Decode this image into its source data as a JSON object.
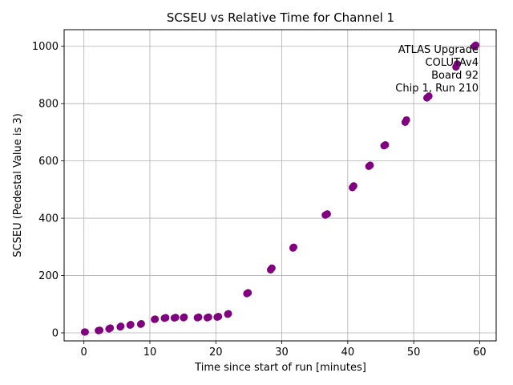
{
  "chart_data": {
    "type": "scatter",
    "title": "SCSEU vs Relative Time for Channel 1",
    "xlabel": "Time since start of run [minutes]",
    "ylabel": "SCSEU (Pedestal Value is 3)",
    "xlim": [
      -3,
      62.5
    ],
    "ylim": [
      -28,
      1058
    ],
    "xticks": [
      0,
      10,
      20,
      30,
      40,
      50,
      60
    ],
    "yticks": [
      0,
      200,
      400,
      600,
      800,
      1000
    ],
    "xtick_labels": [
      "0",
      "10",
      "20",
      "30",
      "40",
      "50",
      "60"
    ],
    "ytick_labels": [
      "0",
      "200",
      "400",
      "600",
      "800",
      "1000"
    ],
    "grid": true,
    "marker_color": "#800080",
    "annotation": [
      "ATLAS Upgrade",
      "COLUTAv4",
      "Board 92",
      "Chip 1, Run 210"
    ],
    "annotation_position": "top-right",
    "series": [
      {
        "name": "Channel 1",
        "x": [
          0.1,
          0.2,
          2.2,
          2.4,
          3.8,
          4.0,
          5.5,
          5.6,
          7.0,
          7.1,
          8.6,
          8.7,
          10.7,
          10.8,
          12.2,
          12.4,
          13.7,
          13.9,
          15.1,
          15.2,
          17.2,
          17.4,
          18.7,
          18.9,
          20.2,
          20.4,
          21.8,
          21.9,
          24.7,
          24.9,
          28.3,
          28.5,
          31.7,
          31.8,
          36.6,
          36.9,
          40.7,
          40.9,
          43.2,
          43.4,
          45.5,
          45.7,
          48.7,
          48.9,
          52.0,
          52.3,
          56.4,
          56.6,
          59.2,
          59.4
        ],
        "y": [
          3,
          3,
          8,
          9,
          14,
          17,
          21,
          23,
          27,
          29,
          30,
          32,
          47,
          48,
          51,
          53,
          52,
          54,
          53,
          55,
          53,
          55,
          53,
          55,
          55,
          57,
          65,
          67,
          137,
          140,
          220,
          226,
          296,
          299,
          411,
          415,
          507,
          513,
          581,
          585,
          653,
          656,
          735,
          743,
          820,
          826,
          928,
          938,
          1000,
          1004
        ]
      }
    ]
  }
}
